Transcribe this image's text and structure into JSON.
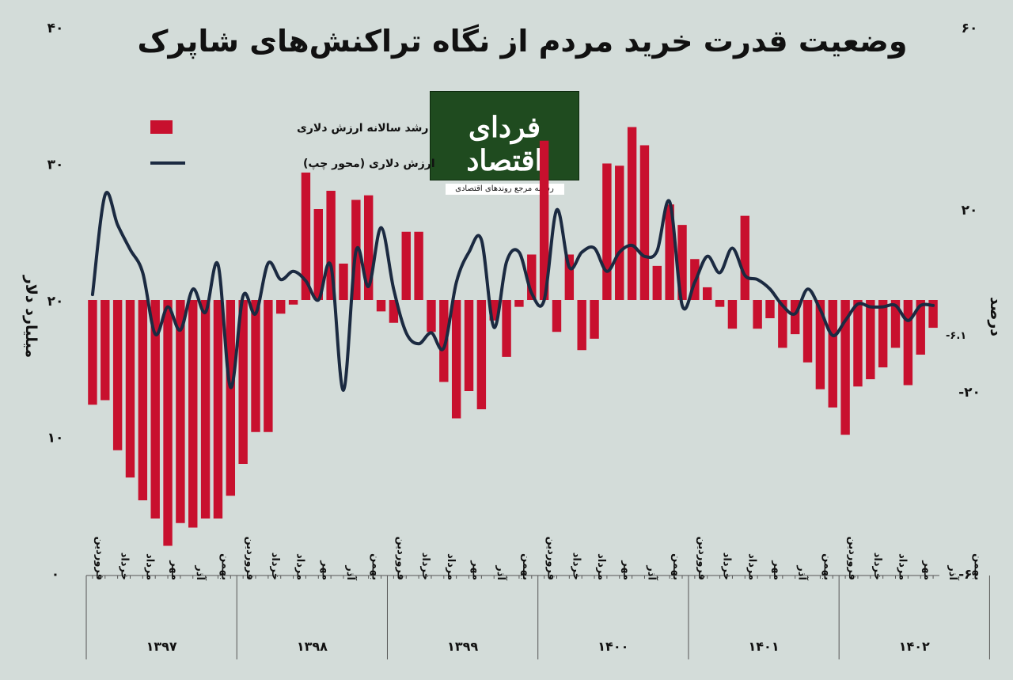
{
  "title": "وضعیت قدرت خرید مردم از نگاه تراکنش‌های شاپرک",
  "logo": {
    "main": "فردای اقتصاد",
    "sub": "رسانه مرجع روندهای اقتصادی"
  },
  "colors": {
    "background": "#d3dcd9",
    "bars": "#c8102e",
    "line": "#1b2a41"
  },
  "chart_data": {
    "type": "bar+line",
    "ylabel_left": "میلیارد دلار",
    "ylabel_right": "درصد",
    "ylim_left": [
      0,
      40
    ],
    "ylim_right": [
      -60,
      60
    ],
    "left_ticks": [
      {
        "value": 0,
        "label": "0"
      },
      {
        "value": 10,
        "label": "10"
      },
      {
        "value": 20,
        "label": "20"
      },
      {
        "value": 30,
        "label": "30"
      },
      {
        "value": 40,
        "label": "40"
      }
    ],
    "right_ticks": [
      {
        "value": -60,
        "label": "-60"
      },
      {
        "value": -20,
        "label": "-20"
      },
      {
        "value": 20,
        "label": "20"
      },
      {
        "value": 60,
        "label": "60"
      }
    ],
    "last_value_label": "-6.1",
    "legend": {
      "bars": "رشد سالانه ارزش دلاری",
      "line": "ارزش دلاری (محور چپ)"
    },
    "month_labels": [
      "فروردین",
      "خرداد",
      "مرداد",
      "مهر",
      "آذر",
      "بهمن"
    ],
    "years": [
      "1397",
      "1398",
      "1399",
      "1400",
      "1401",
      "1402"
    ],
    "series": [
      {
        "name": "رشد سالانه ارزش دلاری",
        "axis": "right",
        "values": [
          -23,
          -22,
          -33,
          -39,
          -44,
          -48,
          -54,
          -49,
          -50,
          -48,
          -48,
          -43,
          -36,
          -29,
          -29,
          -3,
          -1,
          28,
          20,
          24,
          8,
          22,
          23,
          -2.5,
          -5,
          15,
          15,
          -7,
          -18,
          -26,
          -20,
          -24,
          -4.5,
          -12.5,
          -1.5,
          10,
          35,
          -7,
          10,
          -11,
          -8.5,
          30,
          29.5,
          38,
          34,
          7.5,
          21,
          16.5,
          9,
          2.8,
          -1.5,
          -6.3,
          18.5,
          -6.3,
          -4,
          -10.5,
          -7.5,
          -13.7,
          -19.6,
          -23.6,
          -29.6,
          -19,
          -17.4,
          -14.8,
          -10.5,
          -18.7,
          -12,
          -6.1
        ]
      },
      {
        "name": "ارزش دلاری (محور چپ)",
        "axis": "left",
        "values": [
          20.4,
          27.7,
          25.5,
          23.7,
          22.0,
          17.5,
          19.5,
          17.8,
          20.8,
          19.1,
          22.6,
          13.6,
          20.3,
          19.0,
          22.7,
          21.5,
          22.1,
          21.4,
          20.0,
          22.5,
          13.4,
          23.6,
          21.0,
          25.3,
          20.8,
          17.6,
          16.8,
          17.6,
          16.5,
          21.3,
          23.5,
          24.4,
          18.0,
          22.8,
          23.5,
          20.5,
          20.0,
          26.6,
          22.4,
          23.5,
          23.8,
          22.1,
          23.5,
          24.0,
          23.2,
          23.6,
          27.2,
          19.6,
          21.3,
          23.2,
          22.0,
          23.8,
          21.8,
          21.5,
          20.8,
          19.6,
          19.0,
          20.8,
          19.3,
          17.4,
          18.5,
          19.7,
          19.5,
          19.5,
          19.6,
          18.5,
          19.6,
          19.6
        ]
      }
    ]
  }
}
